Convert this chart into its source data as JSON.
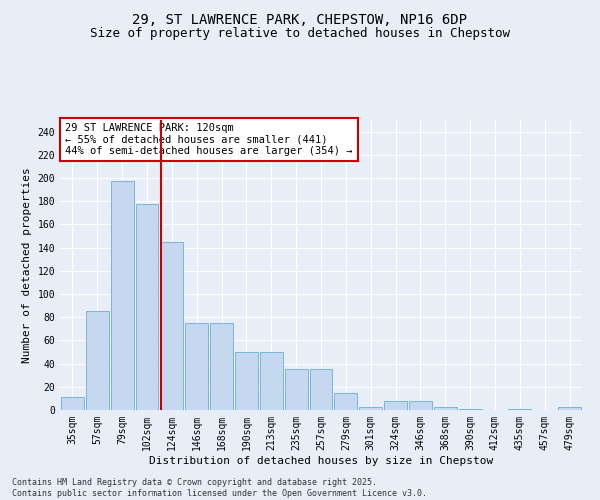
{
  "title": "29, ST LAWRENCE PARK, CHEPSTOW, NP16 6DP",
  "subtitle": "Size of property relative to detached houses in Chepstow",
  "xlabel": "Distribution of detached houses by size in Chepstow",
  "ylabel": "Number of detached properties",
  "categories": [
    "35sqm",
    "57sqm",
    "79sqm",
    "102sqm",
    "124sqm",
    "146sqm",
    "168sqm",
    "190sqm",
    "213sqm",
    "235sqm",
    "257sqm",
    "279sqm",
    "301sqm",
    "324sqm",
    "346sqm",
    "368sqm",
    "390sqm",
    "412sqm",
    "435sqm",
    "457sqm",
    "479sqm"
  ],
  "values": [
    11,
    85,
    197,
    178,
    145,
    75,
    75,
    50,
    50,
    35,
    35,
    15,
    3,
    8,
    8,
    3,
    1,
    0,
    1,
    0,
    3
  ],
  "bar_color": "#c5d8f0",
  "bar_edge_color": "#6baed6",
  "vline_color": "#cc0000",
  "annotation_text": "29 ST LAWRENCE PARK: 120sqm\n← 55% of detached houses are smaller (441)\n44% of semi-detached houses are larger (354) →",
  "annotation_box_color": "#ffffff",
  "annotation_box_edge": "#cc0000",
  "ylim": [
    0,
    250
  ],
  "yticks": [
    0,
    20,
    40,
    60,
    80,
    100,
    120,
    140,
    160,
    180,
    200,
    220,
    240
  ],
  "bg_color": "#e8eef8",
  "grid_color": "#ffffff",
  "title_fontsize": 10,
  "subtitle_fontsize": 9,
  "xlabel_fontsize": 8,
  "ylabel_fontsize": 8,
  "tick_fontsize": 7,
  "annotation_fontsize": 7.5,
  "footer_text": "Contains HM Land Registry data © Crown copyright and database right 2025.\nContains public sector information licensed under the Open Government Licence v3.0."
}
